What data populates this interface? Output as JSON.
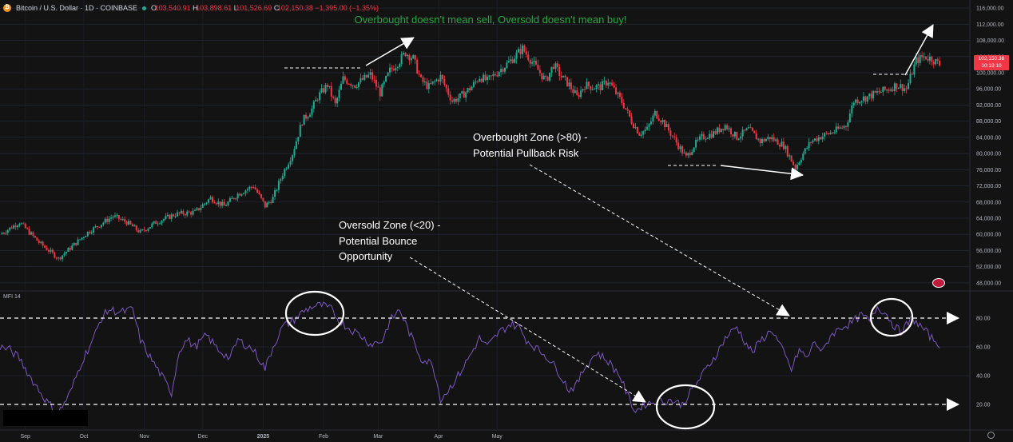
{
  "header": {
    "symbol": "Bitcoin / U.S. Dollar · 1D · COINBASE",
    "coin_glyph": "₿",
    "o_key": "O",
    "o_val": "103,540.91",
    "h_key": "H",
    "h_val": "103,898.61",
    "l_key": "L",
    "l_val": "101,526.69",
    "c_key": "C",
    "c_val": "102,150.38",
    "change": "−1,395.00 (−1.35%)"
  },
  "annotations": {
    "headline": "Overbought doesn't mean sell, Oversold doesn't mean buy!",
    "overbought_line1": "Overbought Zone (>80) -",
    "overbought_line2": "Potential Pullback Risk",
    "oversold_line1": "Oversold Zone (<20) -",
    "oversold_line2": "Potential Bounce",
    "oversold_line3": "Opportunity"
  },
  "price_tag": {
    "price": "102,150.38",
    "countdown": "10:19:10"
  },
  "indicator": {
    "name": "MFI 14"
  },
  "colors": {
    "up": "#22ab94",
    "down": "#f23645",
    "mfi": "#7e57c2",
    "headline": "#28a745",
    "bg": "#131313"
  },
  "icons": {
    "flag": "flag-icon",
    "settings": "gear-icon",
    "coin": "bitcoin-icon"
  },
  "chart_data": [
    {
      "type": "candlestick",
      "title": "Bitcoin / U.S. Dollar · 1D · COINBASE",
      "price_axis_ticks": [
        "116,000.00",
        "112,000.00",
        "108,000.00",
        "104,000.00",
        "100,000.00",
        "96,000.00",
        "92,000.00",
        "88,000.00",
        "84,000.00",
        "80,000.00",
        "76,000.00",
        "72,000.00",
        "68,000.00",
        "64,000.00",
        "60,000.00",
        "56,000.00",
        "52,000.00",
        "48,000.00"
      ],
      "ylim": [
        46000,
        118000
      ],
      "x_ticks": [
        "Sep",
        "Oct",
        "Nov",
        "Dec",
        "2025",
        "Feb",
        "Mar",
        "Apr",
        "May"
      ],
      "anchors": [
        [
          0,
          60000
        ],
        [
          10,
          63000
        ],
        [
          20,
          58000
        ],
        [
          30,
          54000
        ],
        [
          45,
          60500
        ],
        [
          58,
          64500
        ],
        [
          65,
          63000
        ],
        [
          72,
          60500
        ],
        [
          80,
          63000
        ],
        [
          90,
          65000
        ],
        [
          100,
          65500
        ],
        [
          108,
          69000
        ],
        [
          115,
          67000
        ],
        [
          122,
          70000
        ],
        [
          130,
          72000
        ],
        [
          136,
          67000
        ],
        [
          140,
          69000
        ],
        [
          145,
          75000
        ],
        [
          150,
          80000
        ],
        [
          155,
          88000
        ],
        [
          160,
          91000
        ],
        [
          163,
          94000
        ],
        [
          168,
          97000
        ],
        [
          172,
          92000
        ],
        [
          176,
          98500
        ],
        [
          182,
          97000
        ],
        [
          190,
          99500
        ],
        [
          195,
          95000
        ],
        [
          200,
          100500
        ],
        [
          205,
          103000
        ],
        [
          208,
          105000
        ],
        [
          212,
          103500
        ],
        [
          216,
          98000
        ],
        [
          220,
          96500
        ],
        [
          226,
          99000
        ],
        [
          232,
          93000
        ],
        [
          236,
          94000
        ],
        [
          242,
          96500
        ],
        [
          246,
          99000
        ],
        [
          250,
          98000
        ],
        [
          256,
          100500
        ],
        [
          262,
          103000
        ],
        [
          268,
          106000
        ],
        [
          274,
          102000
        ],
        [
          280,
          98000
        ],
        [
          284,
          102000
        ],
        [
          288,
          99000
        ],
        [
          292,
          97000
        ],
        [
          296,
          94000
        ],
        [
          300,
          97000
        ],
        [
          304,
          96500
        ],
        [
          308,
          96500
        ],
        [
          312,
          98000
        ],
        [
          316,
          95000
        ],
        [
          320,
          92000
        ],
        [
          324,
          88000
        ],
        [
          328,
          85000
        ],
        [
          332,
          86000
        ],
        [
          336,
          90000
        ],
        [
          340,
          88000
        ],
        [
          344,
          85000
        ],
        [
          348,
          82000
        ],
        [
          352,
          79000
        ],
        [
          356,
          82000
        ],
        [
          360,
          84000
        ],
        [
          366,
          85000
        ],
        [
          372,
          87000
        ],
        [
          378,
          84000
        ],
        [
          384,
          86000
        ],
        [
          390,
          83000
        ],
        [
          395,
          84000
        ],
        [
          402,
          82000
        ],
        [
          408,
          76500
        ],
        [
          412,
          80000
        ],
        [
          416,
          83000
        ],
        [
          420,
          84000
        ],
        [
          428,
          85500
        ],
        [
          434,
          87000
        ],
        [
          438,
          93000
        ],
        [
          445,
          94000
        ],
        [
          450,
          95000
        ],
        [
          456,
          96000
        ],
        [
          460,
          97000
        ],
        [
          465,
          96000
        ],
        [
          470,
          103000
        ],
        [
          474,
          104000
        ],
        [
          478,
          103500
        ],
        [
          482,
          102000
        ]
      ]
    },
    {
      "type": "line",
      "title": "MFI 14",
      "series": [
        {
          "name": "MFI 14",
          "values": "per-day MFI reading, see mfi_anchors"
        }
      ],
      "y_ticks": [
        "80.00",
        "60.00",
        "40.00",
        "20.00"
      ],
      "ylim": [
        5,
        95
      ],
      "reference_lines": [
        80,
        20
      ],
      "mfi_anchors": [
        [
          0,
          60
        ],
        [
          5,
          58
        ],
        [
          10,
          52
        ],
        [
          16,
          38
        ],
        [
          24,
          22
        ],
        [
          30,
          14
        ],
        [
          36,
          28
        ],
        [
          42,
          50
        ],
        [
          48,
          66
        ],
        [
          52,
          80
        ],
        [
          56,
          86
        ],
        [
          62,
          84
        ],
        [
          68,
          86
        ],
        [
          72,
          65
        ],
        [
          76,
          55
        ],
        [
          82,
          42
        ],
        [
          88,
          28
        ],
        [
          92,
          58
        ],
        [
          96,
          65
        ],
        [
          100,
          60
        ],
        [
          106,
          68
        ],
        [
          112,
          58
        ],
        [
          118,
          52
        ],
        [
          122,
          65
        ],
        [
          130,
          58
        ],
        [
          136,
          45
        ],
        [
          140,
          60
        ],
        [
          145,
          74
        ],
        [
          150,
          78
        ],
        [
          155,
          84
        ],
        [
          160,
          88
        ],
        [
          165,
          89
        ],
        [
          170,
          86
        ],
        [
          174,
          78
        ],
        [
          178,
          74
        ],
        [
          185,
          68
        ],
        [
          190,
          62
        ],
        [
          196,
          64
        ],
        [
          200,
          78
        ],
        [
          205,
          86
        ],
        [
          210,
          70
        ],
        [
          216,
          52
        ],
        [
          222,
          48
        ],
        [
          226,
          24
        ],
        [
          230,
          30
        ],
        [
          236,
          42
        ],
        [
          242,
          56
        ],
        [
          246,
          66
        ],
        [
          250,
          60
        ],
        [
          256,
          70
        ],
        [
          262,
          76
        ],
        [
          266,
          74
        ],
        [
          270,
          65
        ],
        [
          276,
          58
        ],
        [
          280,
          54
        ],
        [
          286,
          44
        ],
        [
          292,
          30
        ],
        [
          296,
          34
        ],
        [
          300,
          46
        ],
        [
          306,
          56
        ],
        [
          312,
          50
        ],
        [
          318,
          40
        ],
        [
          322,
          26
        ],
        [
          326,
          15
        ],
        [
          330,
          20
        ],
        [
          336,
          22
        ],
        [
          344,
          23
        ],
        [
          350,
          20
        ],
        [
          356,
          32
        ],
        [
          362,
          44
        ],
        [
          368,
          56
        ],
        [
          372,
          66
        ],
        [
          378,
          74
        ],
        [
          382,
          64
        ],
        [
          386,
          56
        ],
        [
          390,
          64
        ],
        [
          396,
          72
        ],
        [
          402,
          56
        ],
        [
          406,
          44
        ],
        [
          410,
          58
        ],
        [
          414,
          52
        ],
        [
          418,
          64
        ],
        [
          422,
          56
        ],
        [
          426,
          68
        ],
        [
          432,
          74
        ],
        [
          436,
          76
        ],
        [
          442,
          82
        ],
        [
          446,
          78
        ],
        [
          450,
          88
        ],
        [
          454,
          84
        ],
        [
          458,
          76
        ],
        [
          462,
          70
        ],
        [
          468,
          80
        ],
        [
          474,
          72
        ],
        [
          478,
          66
        ],
        [
          482,
          62
        ]
      ]
    }
  ]
}
